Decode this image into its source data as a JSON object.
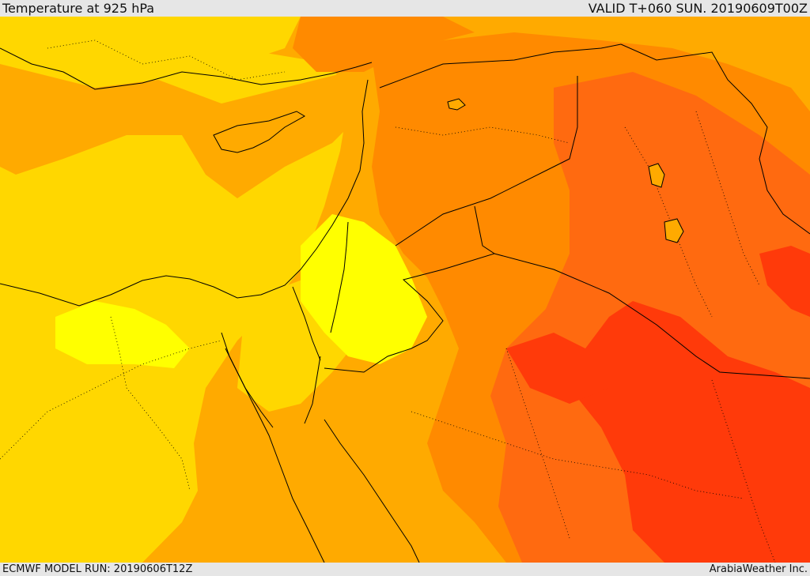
{
  "header": {
    "title": "Temperature at 925 hPa",
    "valid_time": "VALID T+060 SUN. 20190609T00Z"
  },
  "footer": {
    "model_run": "ECMWF MODEL RUN: 20190606T12Z",
    "credit": "ArabiaWeather Inc."
  },
  "map": {
    "region": "Eastern Mediterranean and Middle East",
    "variable": "Temperature at 925 hPa",
    "colors": {
      "yellow_light": "#ffff00",
      "yellow": "#ffd700",
      "orange_light": "#ffaa00",
      "orange": "#ff8a00",
      "orange_red": "#ff6a10",
      "red": "#ff3a0a",
      "boundary": "#000000"
    }
  }
}
